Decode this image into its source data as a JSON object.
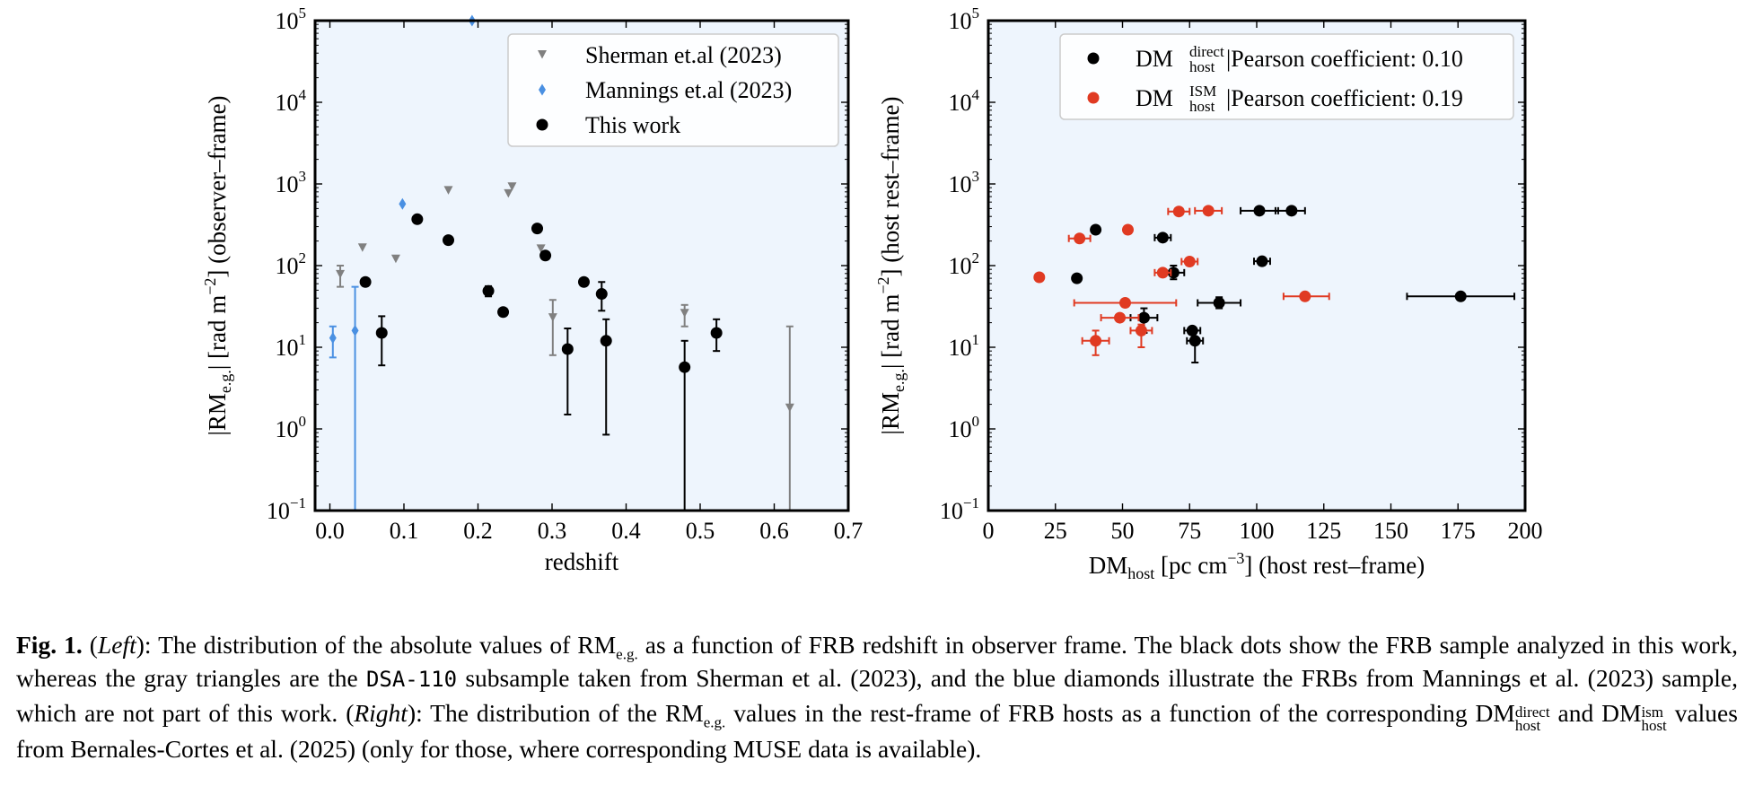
{
  "colors": {
    "panel_bg": "#eef5fd",
    "this_work": "#000000",
    "sherman": "#808080",
    "mannings": "#4a90e2",
    "ism": "#e03a22"
  },
  "chart_data": [
    {
      "type": "scatter",
      "panel": "left",
      "xlabel": "redshift",
      "ylabel_main": "|RM",
      "ylabel_sub": "e.g.",
      "ylabel_rest": "|  [rad m",
      "ylabel_exp": "−2",
      "ylabel_end": "]  (observer–frame)",
      "xlim": [
        -0.02,
        0.7
      ],
      "ylim_log10": [
        -1,
        5
      ],
      "yscale": "log",
      "x_ticks": [
        0.0,
        0.1,
        0.2,
        0.3,
        0.4,
        0.5,
        0.6,
        0.7
      ],
      "x_tick_labels": [
        "0.0",
        "0.1",
        "0.2",
        "0.3",
        "0.4",
        "0.5",
        "0.6",
        "0.7"
      ],
      "y_ticks_log10": [
        -1,
        0,
        1,
        2,
        3,
        4,
        5
      ],
      "y_tick_exp_labels": [
        "−1",
        "0",
        "1",
        "2",
        "3",
        "4",
        "5"
      ],
      "y_tick_base": "10",
      "legend": [
        {
          "label": "Sherman et.al  (2023)",
          "marker": "triangle",
          "color": "#808080"
        },
        {
          "label": "Mannings et.al  (2023)",
          "marker": "diamond",
          "color": "#4a90e2"
        },
        {
          "label": "This work",
          "marker": "circle",
          "color": "#000000"
        }
      ],
      "legend_position": "top-right",
      "series": [
        {
          "name": "Sherman et.al (2023)",
          "marker": "triangle",
          "color": "#808080",
          "points": [
            {
              "x": 0.014,
              "y": 78,
              "lo": 55,
              "hi": 100
            },
            {
              "x": 0.044,
              "y": 165
            },
            {
              "x": 0.089,
              "y": 120
            },
            {
              "x": 0.16,
              "y": 830
            },
            {
              "x": 0.241,
              "y": 760
            },
            {
              "x": 0.246,
              "y": 920
            },
            {
              "x": 0.285,
              "y": 160
            },
            {
              "x": 0.301,
              "y": 23,
              "lo": 8,
              "hi": 38
            },
            {
              "x": 0.479,
              "y": 26,
              "lo": 18,
              "hi": 33
            },
            {
              "x": 0.621,
              "y": 1.8,
              "lo": 0.1,
              "hi": 18
            }
          ]
        },
        {
          "name": "Mannings et.al (2023)",
          "marker": "diamond",
          "color": "#4a90e2",
          "points": [
            {
              "x": 0.004,
              "y": 13,
              "lo": 7.5,
              "hi": 18
            },
            {
              "x": 0.034,
              "y": 16,
              "lo": 0.1,
              "hi": 55
            },
            {
              "x": 0.098,
              "y": 570
            },
            {
              "x": 0.192,
              "y": 100000
            }
          ]
        },
        {
          "name": "This work",
          "marker": "circle",
          "color": "#000000",
          "points": [
            {
              "x": 0.048,
              "y": 63
            },
            {
              "x": 0.07,
              "y": 15,
              "lo": 6,
              "hi": 24
            },
            {
              "x": 0.118,
              "y": 370
            },
            {
              "x": 0.16,
              "y": 205
            },
            {
              "x": 0.214,
              "y": 49,
              "lo": 42,
              "hi": 56
            },
            {
              "x": 0.234,
              "y": 27
            },
            {
              "x": 0.28,
              "y": 285
            },
            {
              "x": 0.291,
              "y": 133
            },
            {
              "x": 0.321,
              "y": 9.5,
              "lo": 1.5,
              "hi": 17
            },
            {
              "x": 0.343,
              "y": 63
            },
            {
              "x": 0.367,
              "y": 45,
              "lo": 28,
              "hi": 63
            },
            {
              "x": 0.373,
              "y": 12,
              "lo": 0.85,
              "hi": 22
            },
            {
              "x": 0.479,
              "y": 5.7,
              "lo": 0.1,
              "hi": 12
            },
            {
              "x": 0.522,
              "y": 15,
              "lo": 9,
              "hi": 22
            }
          ]
        }
      ]
    },
    {
      "type": "scatter",
      "panel": "right",
      "xlabel_main": "DM",
      "xlabel_sub": "host",
      "xlabel_rest": "  [pc cm",
      "xlabel_exp": "−3",
      "xlabel_end": "]  (host rest–frame)",
      "ylabel_main": "|RM",
      "ylabel_sub": "e.g.",
      "ylabel_rest": "|  [rad m",
      "ylabel_exp": "−2",
      "ylabel_end": "]  (host rest–frame)",
      "xlim": [
        0,
        200
      ],
      "ylim_log10": [
        -1,
        5
      ],
      "yscale": "log",
      "x_ticks": [
        0,
        25,
        50,
        75,
        100,
        125,
        150,
        175,
        200
      ],
      "x_tick_labels": [
        "0",
        "25",
        "50",
        "75",
        "100",
        "125",
        "150",
        "175",
        "200"
      ],
      "y_ticks_log10": [
        -1,
        0,
        1,
        2,
        3,
        4,
        5
      ],
      "y_tick_exp_labels": [
        "−1",
        "0",
        "1",
        "2",
        "3",
        "4",
        "5"
      ],
      "y_tick_base": "10",
      "legend": [
        {
          "label_main": "DM",
          "label_sup": "direct",
          "label_sub": "host",
          "label_rest": "  |Pearson coefficient: 0.10",
          "marker": "circle",
          "color": "#000000"
        },
        {
          "label_main": "DM",
          "label_sup": "ISM",
          "label_sub": "host",
          "label_rest": "  |Pearson coefficient: 0.19",
          "marker": "circle",
          "color": "#e03a22"
        }
      ],
      "legend_position": "top-right",
      "series": [
        {
          "name": "DM_host^direct",
          "color": "#000000",
          "points": [
            {
              "x": 33,
              "y": 70
            },
            {
              "x": 40,
              "y": 275
            },
            {
              "x": 65,
              "y": 220,
              "xlo": 62,
              "xhi": 68
            },
            {
              "x": 69,
              "y": 82,
              "xlo": 65,
              "xhi": 73,
              "lo": 68,
              "hi": 100
            },
            {
              "x": 58,
              "y": 23,
              "xlo": 53,
              "xhi": 63,
              "lo": 15,
              "hi": 30
            },
            {
              "x": 86,
              "y": 35,
              "xlo": 78,
              "xhi": 94,
              "lo": 30,
              "hi": 41
            },
            {
              "x": 76,
              "y": 16,
              "xlo": 73,
              "xhi": 79
            },
            {
              "x": 77,
              "y": 12,
              "xlo": 74,
              "xhi": 80,
              "lo": 6.5,
              "hi": 16
            },
            {
              "x": 101,
              "y": 470,
              "xlo": 94,
              "xhi": 108
            },
            {
              "x": 113,
              "y": 470,
              "xlo": 107,
              "xhi": 118
            },
            {
              "x": 102,
              "y": 113,
              "xlo": 99,
              "xhi": 105
            },
            {
              "x": 176,
              "y": 42,
              "xlo": 156,
              "xhi": 196
            }
          ]
        },
        {
          "name": "DM_host^ISM",
          "color": "#e03a22",
          "points": [
            {
              "x": 19,
              "y": 72
            },
            {
              "x": 34,
              "y": 215,
              "xlo": 30,
              "xhi": 38
            },
            {
              "x": 52,
              "y": 275
            },
            {
              "x": 71,
              "y": 460,
              "xlo": 67,
              "xhi": 75
            },
            {
              "x": 82,
              "y": 470,
              "xlo": 77,
              "xhi": 87
            },
            {
              "x": 65,
              "y": 82,
              "xlo": 62,
              "xhi": 68
            },
            {
              "x": 75,
              "y": 112,
              "xlo": 72,
              "xhi": 78
            },
            {
              "x": 51,
              "y": 35,
              "xlo": 32,
              "xhi": 70
            },
            {
              "x": 49,
              "y": 23,
              "xlo": 42,
              "xhi": 56
            },
            {
              "x": 40,
              "y": 12,
              "xlo": 35,
              "xhi": 45,
              "lo": 8,
              "hi": 16
            },
            {
              "x": 57,
              "y": 16,
              "xlo": 53,
              "xhi": 61,
              "lo": 10,
              "hi": 19
            },
            {
              "x": 118,
              "y": 42,
              "xlo": 110,
              "xhi": 127
            }
          ]
        }
      ]
    }
  ],
  "caption": {
    "fig_label": "Fig. 1.",
    "t1": " (",
    "left_label": "Left",
    "t2": "): The distribution of the absolute values of RM",
    "sub_eg": "e.g.",
    "t3": " as a function of FRB redshift in observer frame. The black dots show the FRB sample analyzed in this work, whereas the gray triangles are the ",
    "dsa": "DSA-110",
    "t4": " subsample taken from Sherman et al. (2023), and the blue diamonds illustrate the FRBs from Mannings et al. (2023) sample, which are not part of this work. (",
    "right_label": "Right",
    "t5": "): The distribution of the RM",
    "sub_eg2": "e.g.",
    "t6": " values in the rest-frame of FRB hosts as a function of the corresponding DM",
    "sup_direct": "direct",
    "sub_host1": "host",
    "t7": " and DM",
    "sup_ism": "ism",
    "sub_host2": "host",
    "t8": " values from Bernales-Cortes et al. (2025) (only for those, where corresponding MUSE data is available)."
  }
}
